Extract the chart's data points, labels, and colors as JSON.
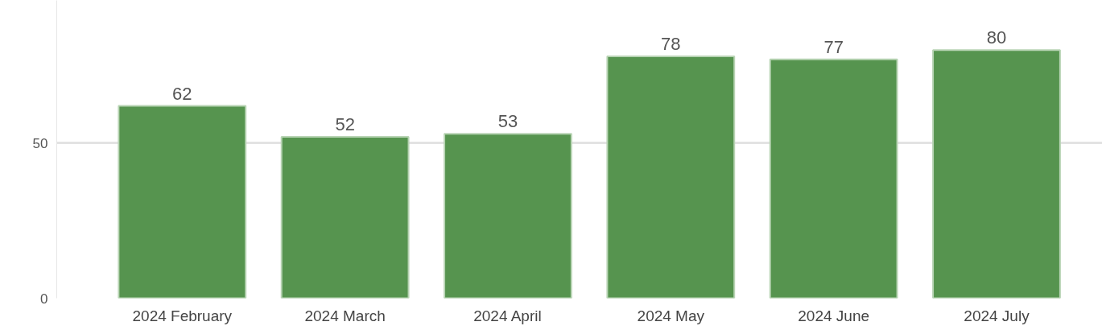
{
  "chart_data": {
    "type": "bar",
    "categories": [
      "2024 February",
      "2024 March",
      "2024 April",
      "2024 May",
      "2024 June",
      "2024 July"
    ],
    "values": [
      62,
      52,
      53,
      78,
      77,
      80
    ],
    "color": "#56944f",
    "ylim": [
      0,
      96
    ],
    "yticks": [
      0,
      50
    ],
    "grid": "y",
    "data_labels": true
  }
}
